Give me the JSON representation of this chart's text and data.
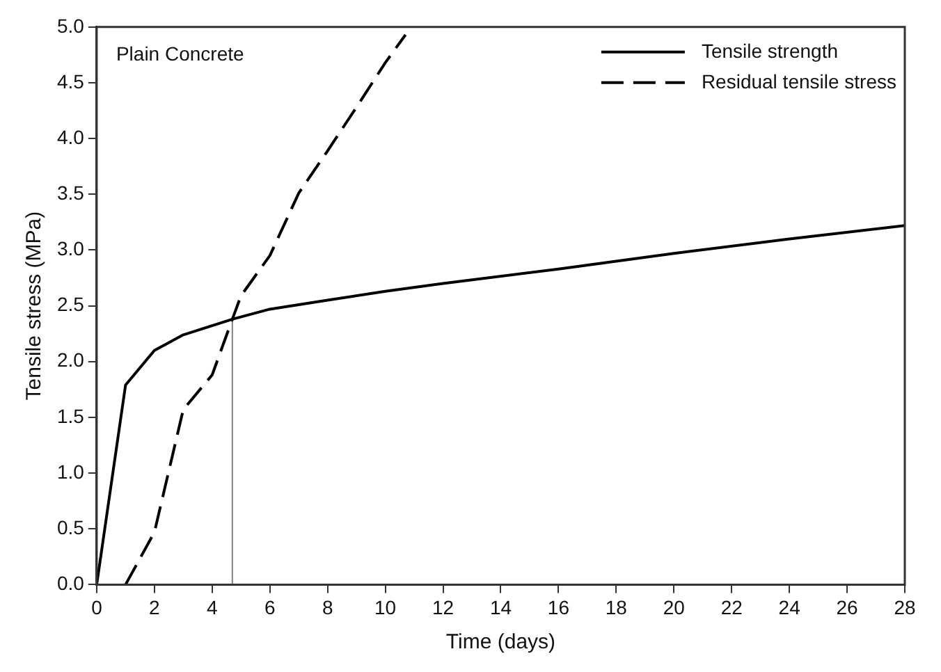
{
  "chart_data": {
    "type": "line",
    "xlabel": "Time (days)",
    "ylabel": "Tensile stress (MPa)",
    "annotations": [
      "Plain Concrete"
    ],
    "series": [
      {
        "name": "Tensile strength",
        "color": "#000000",
        "line_style": "solid",
        "x": [
          0,
          1,
          2,
          3,
          4.7,
          6,
          8,
          10,
          12,
          16,
          20,
          24,
          28
        ],
        "values": [
          0,
          1.79,
          2.1,
          2.24,
          2.38,
          2.47,
          2.55,
          2.63,
          2.7,
          2.83,
          2.97,
          3.1,
          3.22
        ]
      },
      {
        "name": "Residual tensile stress",
        "color": "#000000",
        "line_style": "dashed",
        "x": [
          1,
          2,
          3,
          4,
          4.7,
          5,
          6,
          7,
          8,
          9,
          10,
          10.7
        ],
        "values": [
          0,
          0.47,
          1.57,
          1.88,
          2.38,
          2.59,
          2.95,
          3.51,
          3.89,
          4.28,
          4.68,
          4.93
        ]
      },
      {
        "color": "#808080",
        "line_style": "solid",
        "x": [
          4.7,
          4.7
        ],
        "values": [
          0,
          2.38
        ]
      }
    ],
    "xlim": [
      0,
      28
    ],
    "xticks": [
      0,
      2,
      4,
      6,
      8,
      10,
      12,
      14,
      16,
      18,
      20,
      22,
      24,
      26,
      28
    ],
    "ylim": [
      0,
      5
    ],
    "yticks": [
      {
        "value": 0,
        "label": "0.0"
      },
      {
        "value": 0.5,
        "label": "0.5"
      },
      {
        "value": 1,
        "label": "1.0"
      },
      {
        "value": 1.5,
        "label": "1.5"
      },
      {
        "value": 2,
        "label": "2.0"
      },
      {
        "value": 2.5,
        "label": "2.5"
      },
      {
        "value": 3,
        "label": "3.0"
      },
      {
        "value": 3.5,
        "label": "3.5"
      },
      {
        "value": 4,
        "label": "4.0"
      },
      {
        "value": 4.5,
        "label": "4.5"
      },
      {
        "value": 5,
        "label": "5.0"
      }
    ],
    "grid": false,
    "legend": "top right",
    "marker": "none"
  }
}
